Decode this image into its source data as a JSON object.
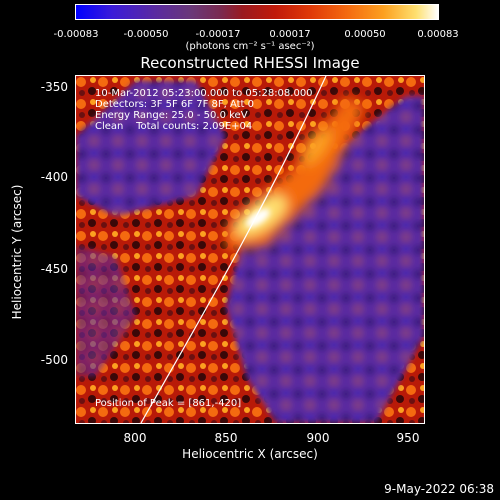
{
  "colorbar": {
    "ticks": [
      "-0.00083",
      "-0.00050",
      "-0.00017",
      "0.00017",
      "0.00050",
      "0.00083"
    ],
    "units": "(photons cm⁻² s⁻¹ asec⁻²)"
  },
  "title": "Reconstructed RHESSI Image",
  "info_lines": [
    "10-Mar-2012 05:23:00.000 to 05:28:08.000",
    "Detectors: 3F 5F 6F 7F 8F, Att 0",
    "Energy Range: 25.0 - 50.0 keV",
    "Clean    Total counts: 2.09E+04"
  ],
  "peak_text": "Position of Peak = [861,-420]",
  "x_axis": {
    "label": "Heliocentric X (arcsec)",
    "ticks": [
      "800",
      "850",
      "900",
      "950"
    ]
  },
  "y_axis": {
    "label": "Heliocentric Y (arcsec)",
    "ticks": [
      "-350",
      "-400",
      "-450",
      "-500"
    ]
  },
  "datestamp": "9-May-2022 06:38",
  "colors": {
    "background": "#000000",
    "text": "#ffffff",
    "limb": "#ffffff"
  }
}
